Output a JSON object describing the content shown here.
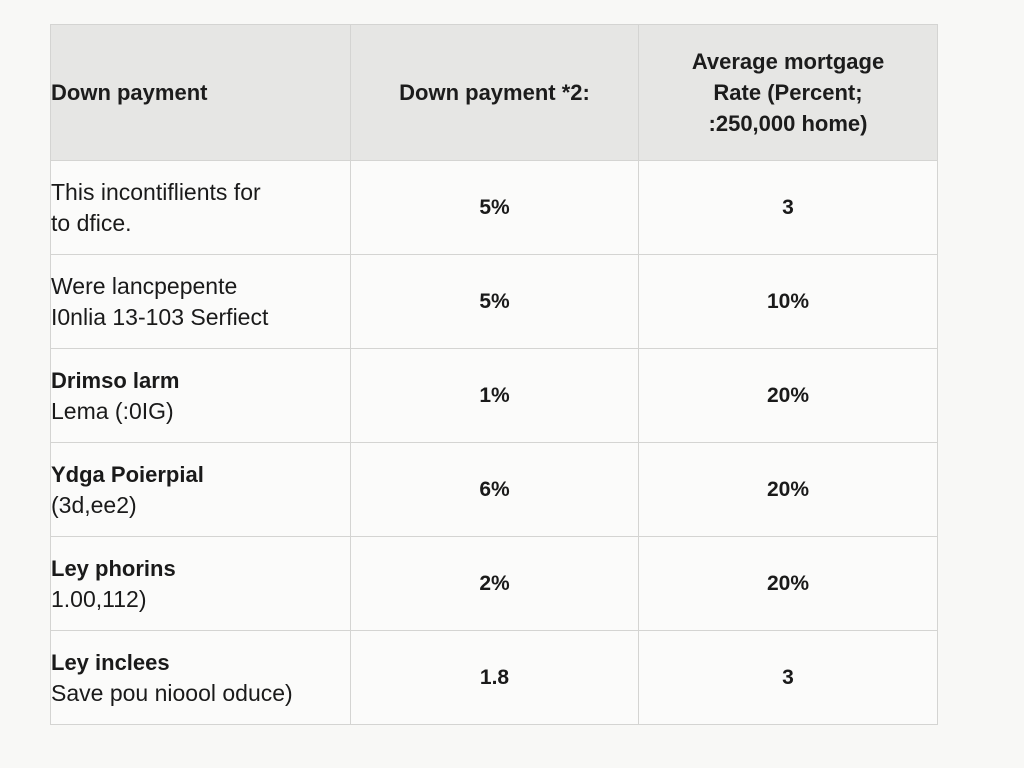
{
  "table": {
    "headers": {
      "col1": "Down payment",
      "col2": "Down payment *2:",
      "col3_lines": [
        "Average mortgage",
        "Rate (Percent;",
        ":250,000 home)"
      ]
    },
    "rows": [
      {
        "line1": "This incontiflients for",
        "line2": "to dfice.",
        "line1_bold": false,
        "col2": "5%",
        "col3": "3"
      },
      {
        "line1": "Were lancpepente",
        "line2": "I0nlia 13-103 Serfiect",
        "line1_bold": false,
        "col2": "5%",
        "col3": "10%"
      },
      {
        "line1": "Drimso larm",
        "line2": "Lema (:0IG)",
        "line1_bold": true,
        "col2": "1%",
        "col3": "20%"
      },
      {
        "line1": "Ydga Poierpial",
        "line2": "(3d,ee2)",
        "line1_bold": true,
        "col2": "6%",
        "col3": "20%"
      },
      {
        "line1": "Ley phorins",
        "line2": "1.00,112)",
        "line1_bold": true,
        "col2": "2%",
        "col3": "20%"
      },
      {
        "line1": "Ley inclees",
        "line2": "Save pou nioool oduce)",
        "line1_bold": true,
        "col2": "1.8",
        "col3": "3"
      }
    ]
  }
}
